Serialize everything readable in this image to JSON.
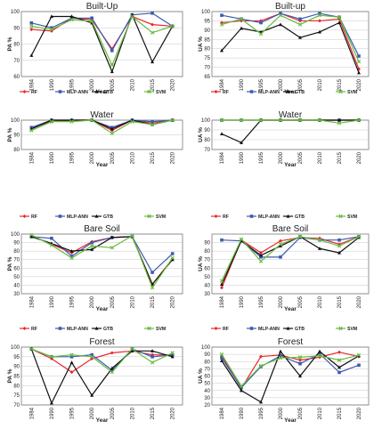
{
  "colors": {
    "RF": "#e8262b",
    "MLP-ANN": "#3d5bb0",
    "GTB": "#111111",
    "SVM": "#67bb3d"
  },
  "chart_data": [
    {
      "type": "line",
      "title": "Built-Up",
      "xlabel": "Year",
      "ylabel": "PA %",
      "ylim": [
        60,
        100
      ],
      "yticks": [
        60,
        70,
        80,
        90,
        100
      ],
      "categories": [
        "1984",
        "1990",
        "1995",
        "2000",
        "2005",
        "2010",
        "2015",
        "2020"
      ],
      "series": [
        {
          "name": "RF",
          "values": [
            89,
            88,
            96,
            95,
            77,
            97,
            92,
            91
          ]
        },
        {
          "name": "MLP-ANN",
          "values": [
            93,
            90,
            96,
            96,
            76,
            98,
            99,
            91
          ]
        },
        {
          "name": "GTB",
          "values": [
            73,
            97,
            97,
            93,
            63,
            98,
            69,
            91
          ]
        },
        {
          "name": "SVM",
          "values": [
            91,
            89,
            95,
            94,
            67,
            97,
            87,
            91
          ]
        }
      ]
    },
    {
      "type": "line",
      "title": "Built-up",
      "xlabel": "Year",
      "ylabel": "UA %",
      "ylim": [
        65,
        100
      ],
      "yticks": [
        65,
        70,
        75,
        80,
        85,
        90,
        95,
        100
      ],
      "categories": [
        "1984",
        "1990",
        "1995",
        "2000",
        "2005",
        "2010",
        "2015",
        "2020"
      ],
      "series": [
        {
          "name": "RF",
          "values": [
            94,
            95,
            95,
            99,
            95,
            95,
            96,
            69
          ]
        },
        {
          "name": "MLP-ANN",
          "values": [
            98,
            96,
            94,
            99,
            96,
            99,
            97,
            76
          ]
        },
        {
          "name": "GTB",
          "values": [
            79,
            91,
            89,
            93,
            86,
            89,
            94,
            67
          ]
        },
        {
          "name": "SVM",
          "values": [
            93,
            96,
            88,
            98,
            93,
            98,
            97,
            73
          ]
        }
      ]
    },
    {
      "type": "line",
      "title": "Water",
      "xlabel": "Year",
      "ylabel": "PA %",
      "ylim": [
        80,
        100
      ],
      "yticks": [
        80,
        90,
        100
      ],
      "categories": [
        "1984",
        "1990",
        "1995",
        "2000",
        "2005",
        "2010",
        "2015",
        "2020"
      ],
      "series": [
        {
          "name": "RF",
          "values": [
            95,
            99,
            100,
            100,
            93,
            100,
            98,
            100
          ]
        },
        {
          "name": "MLP-ANN",
          "values": [
            95,
            100,
            100,
            100,
            95,
            100,
            99,
            100
          ]
        },
        {
          "name": "GTB",
          "values": [
            94,
            100,
            100,
            100,
            94,
            100,
            97,
            100
          ]
        },
        {
          "name": "SVM",
          "values": [
            93,
            99,
            99,
            100,
            91,
            99,
            97,
            100
          ]
        }
      ]
    },
    {
      "type": "line",
      "title": "Water",
      "xlabel": "Year",
      "ylabel": "UA %",
      "ylim": [
        70,
        100
      ],
      "yticks": [
        70,
        80,
        90,
        100
      ],
      "categories": [
        "1984",
        "1990",
        "1995",
        "2000",
        "2005",
        "2010",
        "2015",
        "2020"
      ],
      "series": [
        {
          "name": "RF",
          "values": [
            100,
            100,
            100,
            100,
            100,
            100,
            100,
            100
          ]
        },
        {
          "name": "MLP-ANN",
          "values": [
            100,
            100,
            100,
            100,
            100,
            100,
            100,
            100
          ]
        },
        {
          "name": "GTB",
          "values": [
            86,
            77,
            100,
            100,
            100,
            100,
            100,
            100
          ]
        },
        {
          "name": "SVM",
          "values": [
            100,
            100,
            100,
            100,
            100,
            100,
            97,
            100
          ]
        }
      ]
    },
    {
      "type": "line",
      "title": "Bare Soil",
      "xlabel": "Year",
      "ylabel": "PA %",
      "ylim": [
        30,
        100
      ],
      "yticks": [
        30,
        40,
        50,
        60,
        70,
        80,
        90,
        100
      ],
      "categories": [
        "1984",
        "1990",
        "1995",
        "2000",
        "2005",
        "2010",
        "2015",
        "2020"
      ],
      "series": [
        {
          "name": "RF",
          "values": [
            98,
            88,
            78,
            91,
            96,
            97,
            41,
            71
          ]
        },
        {
          "name": "MLP-ANN",
          "values": [
            97,
            95,
            74,
            90,
            96,
            97,
            55,
            77
          ]
        },
        {
          "name": "GTB",
          "values": [
            97,
            89,
            80,
            82,
            96,
            97,
            41,
            70
          ]
        },
        {
          "name": "SVM",
          "values": [
            99,
            87,
            72,
            86,
            84,
            98,
            37,
            72
          ]
        }
      ]
    },
    {
      "type": "line",
      "title": "Bare Soil",
      "xlabel": "Year",
      "ylabel": "UA %",
      "ylim": [
        30,
        100
      ],
      "yticks": [
        30,
        40,
        50,
        60,
        70,
        80,
        90
      ],
      "categories": [
        "1984",
        "1990",
        "1995",
        "2000",
        "2005",
        "2010",
        "2015",
        "2020"
      ],
      "series": [
        {
          "name": "RF",
          "values": [
            37,
            93,
            78,
            92,
            96,
            95,
            88,
            97
          ]
        },
        {
          "name": "MLP-ANN",
          "values": [
            93,
            92,
            73,
            73,
            96,
            93,
            93,
            97
          ]
        },
        {
          "name": "GTB",
          "values": [
            41,
            92,
            75,
            86,
            97,
            83,
            78,
            96
          ]
        },
        {
          "name": "SVM",
          "values": [
            45,
            94,
            68,
            88,
            97,
            93,
            86,
            97
          ]
        }
      ]
    },
    {
      "type": "line",
      "title": "Forest",
      "xlabel": "Year",
      "ylabel": "PA %",
      "ylim": [
        70,
        100
      ],
      "yticks": [
        70,
        75,
        80,
        85,
        90,
        95,
        100
      ],
      "categories": [
        "1984",
        "1990",
        "1995",
        "2000",
        "2005",
        "2010",
        "2015",
        "2020"
      ],
      "series": [
        {
          "name": "RF",
          "values": [
            99,
            94,
            87,
            94,
            97,
            98,
            96,
            96
          ]
        },
        {
          "name": "MLP-ANN",
          "values": [
            99,
            95,
            95,
            96,
            88,
            99,
            95,
            96
          ]
        },
        {
          "name": "GTB",
          "values": [
            99,
            71,
            92,
            75,
            89,
            98,
            98,
            95
          ]
        },
        {
          "name": "SVM",
          "values": [
            99,
            95,
            96,
            95,
            87,
            99,
            92,
            97
          ]
        }
      ]
    },
    {
      "type": "line",
      "title": "Forest",
      "xlabel": "Year",
      "ylabel": "UA %",
      "ylim": [
        20,
        100
      ],
      "yticks": [
        20,
        30,
        40,
        50,
        60,
        70,
        80,
        90,
        100
      ],
      "categories": [
        "1984",
        "1990",
        "1995",
        "2000",
        "2005",
        "2010",
        "2015",
        "2020"
      ],
      "series": [
        {
          "name": "RF",
          "values": [
            88,
            43,
            87,
            89,
            82,
            86,
            93,
            87
          ]
        },
        {
          "name": "MLP-ANN",
          "values": [
            85,
            44,
            73,
            88,
            77,
            91,
            65,
            75
          ]
        },
        {
          "name": "GTB",
          "values": [
            81,
            40,
            24,
            94,
            60,
            94,
            72,
            88
          ]
        },
        {
          "name": "SVM",
          "values": [
            90,
            46,
            74,
            85,
            86,
            88,
            82,
            89
          ]
        }
      ]
    }
  ]
}
